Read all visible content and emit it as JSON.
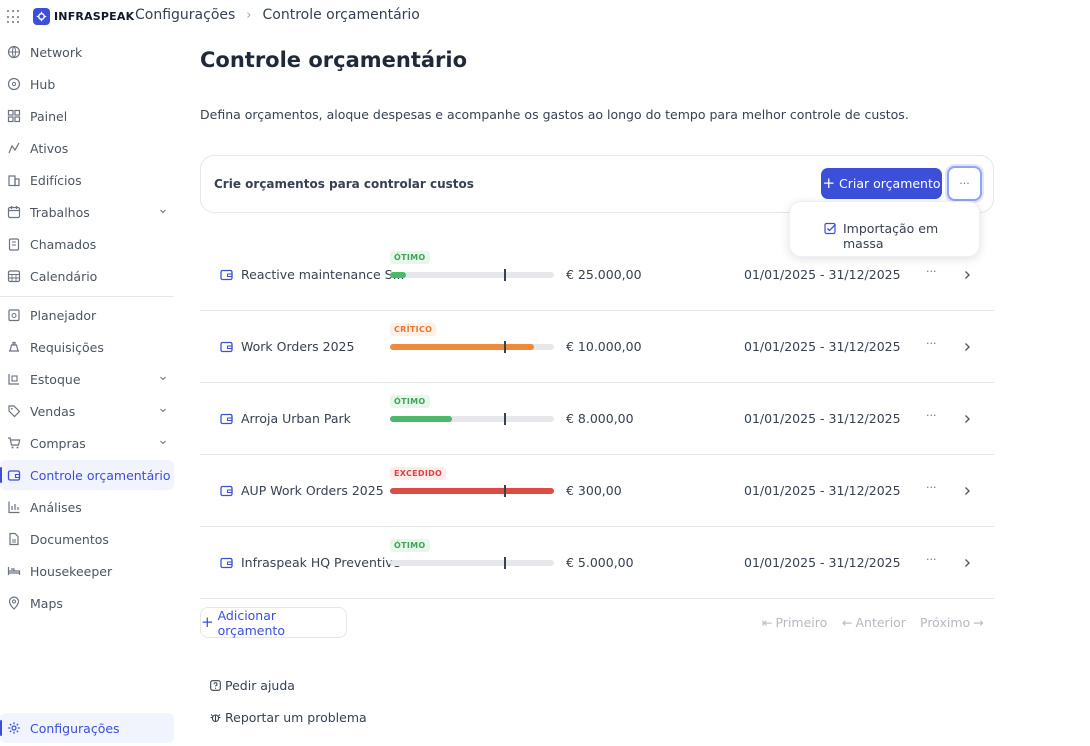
{
  "app": {
    "logo_text": "INFRASPEAK",
    "breadcrumb": [
      "Configurações",
      "Controle orçamentário"
    ]
  },
  "sidebar": {
    "items": [
      {
        "label": "Network",
        "icon": "globe-icon",
        "expandable": false
      },
      {
        "label": "Hub",
        "icon": "hub-icon",
        "expandable": false
      },
      {
        "label": "Painel",
        "icon": "dashboard-icon",
        "expandable": false
      },
      {
        "label": "Ativos",
        "icon": "assets-icon",
        "expandable": false
      },
      {
        "label": "Edifícios",
        "icon": "building-icon",
        "expandable": false
      },
      {
        "label": "Trabalhos",
        "icon": "calendar-icon",
        "expandable": true
      },
      {
        "label": "Chamados",
        "icon": "clipboard-icon",
        "expandable": false
      },
      {
        "label": "Calendário",
        "icon": "calendar-grid-icon",
        "expandable": false
      },
      {
        "label": "Planejador",
        "icon": "planner-icon",
        "expandable": false
      },
      {
        "label": "Requisições",
        "icon": "request-icon",
        "expandable": false
      },
      {
        "label": "Estoque",
        "icon": "stock-icon",
        "expandable": true
      },
      {
        "label": "Vendas",
        "icon": "tag-icon",
        "expandable": true
      },
      {
        "label": "Compras",
        "icon": "cart-icon",
        "expandable": true
      },
      {
        "label": "Controle orçamentário",
        "icon": "wallet-icon",
        "expandable": false,
        "active": true
      },
      {
        "label": "Análises",
        "icon": "bar-chart-icon",
        "expandable": false
      },
      {
        "label": "Documentos",
        "icon": "document-icon",
        "expandable": false
      },
      {
        "label": "Housekeeper",
        "icon": "bed-icon",
        "expandable": false
      },
      {
        "label": "Maps",
        "icon": "map-pin-icon",
        "expandable": false
      }
    ],
    "settings": {
      "label": "Configurações",
      "icon": "gear-icon",
      "active": true
    }
  },
  "main": {
    "title": "Controle orçamentário",
    "description": "Defina orçamentos, aloque despesas e acompanhe os gastos ao longo do tempo para melhor controle de custos.",
    "card": {
      "title": "Crie orçamentos para controlar custos",
      "create_label": "Criar orçamento",
      "more_label": "···"
    },
    "dropdown": {
      "item_label": "Importação em massa"
    },
    "budgets": [
      {
        "name": "Reactive maintenance S...",
        "status": "ÓTIMO",
        "status_type": "good",
        "progress": 0.1,
        "amount": "€ 25.000,00",
        "period": "01/01/2025 - 31/12/2025"
      },
      {
        "name": "Work Orders 2025",
        "status": "CRÍTICO",
        "status_type": "crit",
        "progress": 0.88,
        "amount": "€ 10.000,00",
        "period": "01/01/2025 - 31/12/2025"
      },
      {
        "name": "Arroja Urban Park",
        "status": "ÓTIMO",
        "status_type": "good",
        "progress": 0.38,
        "amount": "€ 8.000,00",
        "period": "01/01/2025 - 31/12/2025"
      },
      {
        "name": "AUP Work Orders 2025",
        "status": "EXCEDIDO",
        "status_type": "over",
        "progress": 1.0,
        "amount": "€ 300,00",
        "period": "01/01/2025 - 31/12/2025"
      },
      {
        "name": "Infraspeak HQ Preventive",
        "status": "ÓTIMO",
        "status_type": "good",
        "progress": 0.0,
        "amount": "€ 5.000,00",
        "period": "01/01/2025 - 31/12/2025"
      }
    ],
    "row_more": "···",
    "add_label": "Adicionar orçamento",
    "pager": {
      "first": "Primeiro",
      "prev": "Anterior",
      "next": "Próximo"
    },
    "help": [
      {
        "label": "Pedir ajuda",
        "icon": "help-icon"
      },
      {
        "label": "Reportar um problema",
        "icon": "bug-icon"
      }
    ]
  },
  "colors": {
    "accent": "#3b4fd9",
    "good": "#4cb86a",
    "crit": "#ef8a3d",
    "over": "#de4a44",
    "track": "#e5e7eb"
  }
}
